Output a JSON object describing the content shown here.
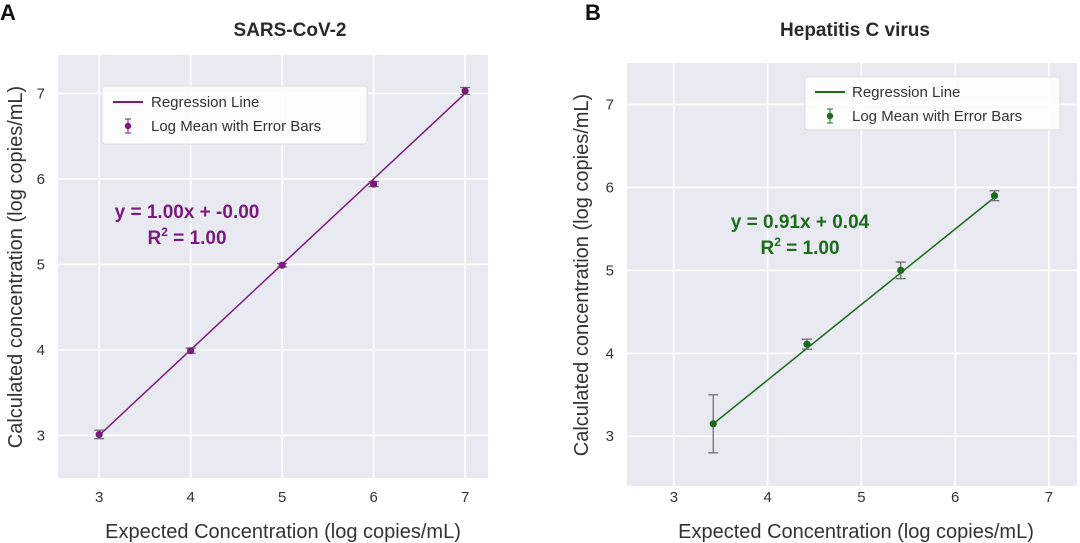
{
  "chart_data": [
    {
      "type": "scatter",
      "panel_label": "A",
      "title": "SARS-CoV-2",
      "xlabel": "Expected Concentration (log copies/mL)",
      "ylabel": "Calculated concentration (log copies/mL)",
      "xlim": [
        2.55,
        7.25
      ],
      "ylim": [
        2.5,
        7.45
      ],
      "xticks": [
        3,
        4,
        5,
        6,
        7
      ],
      "yticks": [
        3,
        4,
        5,
        6,
        7
      ],
      "grid": true,
      "legend_position": "top-center",
      "color": "#7a1a7a",
      "series": [
        {
          "name": "Regression Line",
          "kind": "line",
          "x": [
            3,
            7
          ],
          "y": [
            3.0,
            7.0
          ]
        },
        {
          "name": "Log Mean with Error Bars",
          "kind": "errorbar",
          "x": [
            3,
            4,
            5,
            6,
            7
          ],
          "y": [
            3.01,
            3.99,
            4.99,
            5.94,
            7.03
          ],
          "err": [
            0.05,
            0.03,
            0.02,
            0.03,
            0.04
          ]
        }
      ],
      "annotations": {
        "equation": "y = 1.00x + -0.00",
        "r2_prefix": "R",
        "r2_sup": "2",
        "r2_value": " = 1.00"
      }
    },
    {
      "type": "scatter",
      "panel_label": "B",
      "title": "Hepatitis C virus",
      "xlabel": "Expected Concentration (log copies/mL)",
      "ylabel": "Calculated concentration (log copies/mL)",
      "xlim": [
        2.5,
        7.3
      ],
      "ylim": [
        2.4,
        7.5
      ],
      "xticks": [
        3,
        4,
        5,
        6,
        7
      ],
      "yticks": [
        3,
        4,
        5,
        6,
        7
      ],
      "grid": true,
      "legend_position": "top-right",
      "color": "#1a6b1a",
      "series": [
        {
          "name": "Regression Line",
          "kind": "line",
          "x": [
            3.42,
            6.42
          ],
          "y": [
            3.15,
            5.88
          ]
        },
        {
          "name": "Log Mean with Error Bars",
          "kind": "errorbar",
          "x": [
            3.42,
            4.42,
            5.42,
            6.42
          ],
          "y": [
            3.15,
            4.11,
            5.0,
            5.9
          ],
          "err": [
            0.35,
            0.06,
            0.1,
            0.06
          ]
        }
      ],
      "annotations": {
        "equation": "y = 0.91x + 0.04",
        "r2_prefix": "R",
        "r2_sup": "2",
        "r2_value": " = 1.00"
      }
    }
  ]
}
